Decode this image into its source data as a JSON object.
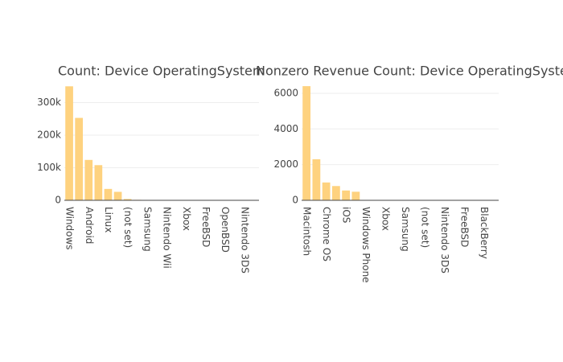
{
  "chart_data": [
    {
      "type": "bar",
      "title": "Count: Device OperatingSystem",
      "categories": [
        "Windows",
        null,
        "Android",
        null,
        "Linux",
        null,
        "(not set)",
        null,
        "Samsung",
        null,
        "Nintendo Wii",
        null,
        "Xbox",
        null,
        "FreeBSD",
        null,
        "OpenBSD",
        null,
        "Nintendo 3DS",
        null
      ],
      "values": [
        350000,
        253000,
        124000,
        108000,
        35000,
        26000,
        4000,
        1500,
        300,
        200,
        100,
        80,
        50,
        40,
        30,
        20,
        10,
        10,
        5,
        5
      ],
      "color": "#fed27f",
      "ylim": [
        0,
        368000
      ],
      "yticks": [
        0,
        {
          "value": 100000,
          "label": "100k"
        },
        {
          "value": 200000,
          "label": "200k"
        },
        {
          "value": 300000,
          "label": "300k"
        }
      ],
      "grid": true
    },
    {
      "type": "bar",
      "title": "Nonzero Revenue Count: Device OperatingSystem",
      "categories": [
        "Macintosh",
        null,
        "Chrome OS",
        null,
        "iOS",
        null,
        "Windows Phone",
        null,
        "Xbox",
        null,
        "Samsung",
        null,
        "(not set)",
        null,
        "Nintendo 3DS",
        null,
        "FreeBSD",
        null,
        "BlackBerry",
        null
      ],
      "values": [
        6400,
        2300,
        1000,
        800,
        550,
        480,
        5,
        3,
        2,
        2,
        1,
        1,
        1,
        1,
        0,
        0,
        0,
        0,
        0,
        0
      ],
      "color": "#fed27f",
      "ylim": [
        0,
        6720
      ],
      "yticks": [
        0,
        2000,
        4000,
        6000
      ],
      "grid": true
    }
  ]
}
